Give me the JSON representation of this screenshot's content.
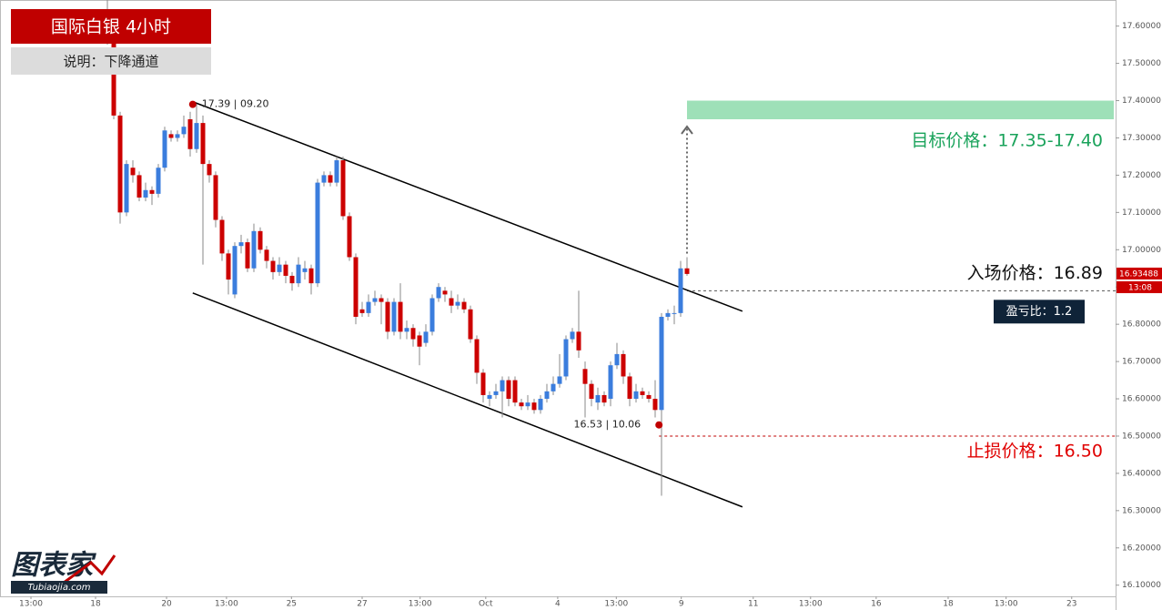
{
  "chart_data": {
    "type": "candlestick",
    "title": "国际白银 4小时",
    "subtitle": "说明：下降通道",
    "x": [
      0,
      1,
      2,
      3,
      4,
      5,
      6,
      7,
      8,
      9,
      10,
      11,
      12,
      13,
      14,
      15,
      16,
      17,
      18,
      19,
      20,
      21,
      22,
      23,
      24,
      25,
      26,
      27,
      28,
      29,
      30,
      31,
      32,
      33,
      34,
      35,
      36,
      37,
      38,
      39,
      40,
      41,
      42,
      43,
      44,
      45,
      46,
      47,
      48,
      49,
      50,
      51,
      52,
      53,
      54,
      55,
      56,
      57,
      58,
      59,
      60,
      61,
      62,
      63,
      64,
      65,
      66,
      67,
      68,
      69,
      70,
      71,
      72,
      73,
      74,
      75,
      76,
      77,
      78,
      79,
      80,
      81,
      82,
      83,
      84,
      85,
      86,
      87,
      88,
      89,
      90,
      91
    ],
    "open": [
      17.62,
      17.56,
      17.36,
      17.1,
      17.22,
      17.2,
      17.14,
      17.16,
      17.15,
      17.22,
      17.31,
      17.3,
      17.31,
      17.35,
      17.27,
      17.34,
      17.23,
      17.2,
      17.08,
      16.99,
      16.88,
      17.01,
      17.02,
      16.95,
      17.05,
      17.0,
      16.97,
      16.94,
      16.96,
      16.93,
      16.91,
      16.94,
      16.95,
      16.91,
      17.18,
      17.2,
      17.18,
      17.24,
      17.09,
      16.98,
      16.84,
      16.83,
      16.86,
      16.87,
      16.86,
      16.78,
      16.86,
      16.78,
      16.79,
      16.77,
      16.75,
      16.78,
      16.87,
      16.89,
      16.87,
      16.85,
      16.86,
      16.84,
      16.76,
      16.67,
      16.6,
      16.61,
      16.62,
      16.65,
      16.65,
      16.59,
      16.58,
      16.59,
      16.57,
      16.6,
      16.62,
      16.64,
      16.66,
      16.76,
      16.78,
      16.68,
      16.64,
      16.59,
      16.61,
      16.6,
      16.69,
      16.72,
      16.66,
      16.6,
      16.62,
      16.61,
      16.6,
      16.57,
      16.82,
      16.83,
      16.83,
      16.95
    ],
    "high": [
      17.67,
      17.57,
      17.37,
      17.24,
      17.24,
      17.21,
      17.18,
      17.17,
      17.23,
      17.33,
      17.32,
      17.32,
      17.36,
      17.37,
      17.39,
      17.36,
      17.24,
      17.21,
      17.09,
      17.0,
      17.02,
      17.04,
      17.03,
      17.07,
      17.06,
      17.01,
      16.98,
      16.98,
      16.97,
      16.94,
      16.98,
      16.97,
      16.96,
      17.19,
      17.21,
      17.21,
      17.25,
      17.25,
      17.1,
      16.99,
      16.86,
      16.88,
      16.89,
      16.88,
      16.87,
      16.87,
      16.91,
      16.81,
      16.8,
      16.78,
      16.8,
      16.88,
      16.91,
      16.9,
      16.89,
      16.88,
      16.87,
      16.85,
      16.77,
      16.68,
      16.62,
      16.64,
      16.66,
      16.66,
      16.66,
      16.6,
      16.61,
      16.6,
      16.61,
      16.64,
      16.66,
      16.72,
      16.77,
      16.79,
      16.89,
      16.7,
      16.65,
      16.63,
      16.62,
      16.7,
      16.75,
      16.73,
      16.67,
      16.64,
      16.63,
      16.62,
      16.65,
      16.83,
      16.84,
      16.85,
      16.97,
      16.98
    ],
    "low": [
      17.55,
      17.35,
      17.07,
      17.09,
      17.18,
      17.13,
      17.13,
      17.12,
      17.14,
      17.21,
      17.29,
      17.29,
      17.3,
      17.25,
      17.26,
      16.96,
      17.18,
      17.06,
      16.97,
      16.88,
      16.87,
      16.99,
      16.94,
      16.94,
      16.99,
      16.95,
      16.92,
      16.93,
      16.91,
      16.89,
      16.9,
      16.92,
      16.88,
      16.9,
      17.17,
      17.17,
      17.17,
      17.08,
      16.97,
      16.8,
      16.82,
      16.82,
      16.85,
      16.8,
      16.76,
      16.77,
      16.76,
      16.76,
      16.74,
      16.69,
      16.74,
      16.77,
      16.86,
      16.86,
      16.83,
      16.84,
      16.83,
      16.75,
      16.64,
      16.59,
      16.58,
      16.6,
      16.55,
      16.58,
      16.58,
      16.57,
      16.57,
      16.56,
      16.56,
      16.59,
      16.61,
      16.63,
      16.65,
      16.75,
      16.71,
      16.55,
      16.58,
      16.57,
      16.58,
      16.58,
      16.68,
      16.64,
      16.58,
      16.59,
      16.6,
      16.59,
      16.55,
      16.34,
      16.81,
      16.8,
      16.82,
      16.93
    ],
    "close": [
      17.56,
      17.36,
      17.1,
      17.23,
      17.2,
      17.14,
      17.16,
      17.15,
      17.22,
      17.32,
      17.3,
      17.31,
      17.33,
      17.27,
      17.34,
      17.23,
      17.2,
      17.08,
      16.99,
      16.92,
      17.01,
      17.02,
      16.95,
      17.05,
      17.0,
      16.97,
      16.94,
      16.96,
      16.93,
      16.91,
      16.96,
      16.95,
      16.91,
      17.18,
      17.2,
      17.18,
      17.24,
      17.09,
      16.98,
      16.82,
      16.83,
      16.86,
      16.87,
      16.86,
      16.78,
      16.86,
      16.78,
      16.79,
      16.76,
      16.74,
      16.78,
      16.87,
      16.9,
      16.88,
      16.85,
      16.86,
      16.84,
      16.76,
      16.67,
      16.61,
      16.61,
      16.62,
      16.65,
      16.6,
      16.59,
      16.58,
      16.59,
      16.57,
      16.6,
      16.62,
      16.64,
      16.66,
      16.76,
      16.78,
      16.73,
      16.64,
      16.6,
      16.61,
      16.59,
      16.69,
      16.72,
      16.66,
      16.6,
      16.62,
      16.61,
      16.6,
      16.57,
      16.82,
      16.83,
      16.83,
      16.95,
      16.935
    ],
    "up_color": "#3b7ddd",
    "down_color": "#cc0000",
    "xlim": [
      -16.86,
      158.29
    ],
    "ylim": [
      16.07,
      17.67
    ],
    "xticks": [
      {
        "value": -12,
        "label": "13:00"
      },
      {
        "value": -1.86,
        "label": "18"
      },
      {
        "value": 9.29,
        "label": "20"
      },
      {
        "value": 18.7,
        "label": "13:00"
      },
      {
        "value": 28.9,
        "label": "25"
      },
      {
        "value": 40,
        "label": "27"
      },
      {
        "value": 49.1,
        "label": "13:00"
      },
      {
        "value": 59.4,
        "label": "Oct"
      },
      {
        "value": 70.7,
        "label": "4"
      },
      {
        "value": 79.9,
        "label": "13:00"
      },
      {
        "value": 90.1,
        "label": "9"
      },
      {
        "value": 101.4,
        "label": "11"
      },
      {
        "value": 110.4,
        "label": "13:00"
      },
      {
        "value": 120.7,
        "label": "16"
      },
      {
        "value": 132,
        "label": "18"
      },
      {
        "value": 141.1,
        "label": "13:00"
      },
      {
        "value": 151.4,
        "label": "23"
      }
    ],
    "yticks": [
      {
        "value": 16.1,
        "label": "16.10000"
      },
      {
        "value": 16.2,
        "label": "16.20000"
      },
      {
        "value": 16.3,
        "label": "16.30000"
      },
      {
        "value": 16.4,
        "label": "16.40000"
      },
      {
        "value": 16.5,
        "label": "16.50000"
      },
      {
        "value": 16.6,
        "label": "16.60000"
      },
      {
        "value": 16.7,
        "label": "16.70000"
      },
      {
        "value": 16.8,
        "label": "16.80000"
      },
      {
        "value": 16.9,
        "label": "16.90000"
      },
      {
        "value": 17.0,
        "label": "17.00000"
      },
      {
        "value": 17.1,
        "label": "17.10000"
      },
      {
        "value": 17.2,
        "label": "17.20000"
      },
      {
        "value": 17.3,
        "label": "17.30000"
      },
      {
        "value": 17.4,
        "label": "17.40000"
      },
      {
        "value": 17.5,
        "label": "17.50000"
      },
      {
        "value": 17.6,
        "label": "17.60000"
      }
    ],
    "channel": [
      {
        "x": [
          13.4,
          99.7
        ],
        "y": [
          17.397,
          16.835
        ]
      },
      {
        "x": [
          13.4,
          99.7
        ],
        "y": [
          16.884,
          16.31
        ]
      }
    ],
    "points": [
      {
        "x": 13.4,
        "y": 17.39,
        "label": "17.39 | 09.20"
      },
      {
        "x": 86.6,
        "y": 16.53,
        "label": "16.53 | 10.06"
      }
    ],
    "target": {
      "range": [
        17.35,
        17.4
      ],
      "label": "目标价格：17.35-17.40"
    },
    "entry": {
      "value": 16.89,
      "label": "入场价格：16.89"
    },
    "stop": {
      "value": 16.5,
      "label": "止损价格：16.50"
    },
    "ratio_label": "盈亏比：1.2",
    "last_price": 16.93488,
    "countdown": "13:08"
  },
  "logo": {
    "main": "图表家",
    "sub": "Tubiaojia.com"
  }
}
